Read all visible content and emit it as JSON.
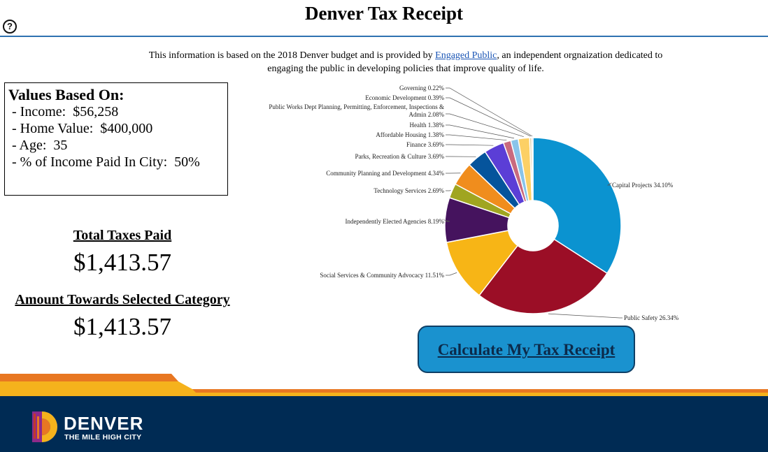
{
  "page": {
    "title": "Denver Tax Receipt",
    "help_icon": "help-circle-icon",
    "intro_before": "This information is based on the 2018 Denver budget and is provided by ",
    "intro_link": "Engaged Public",
    "intro_after": ", an independent orgnaization dedicated to engaging the public in developing policies that improve quality of life."
  },
  "values": {
    "title": "Values Based On:",
    "lines": [
      " - Income:  $56,258",
      " - Home Value:  $400,000",
      " - Age:  35",
      " - % of Income Paid In City:  50%"
    ]
  },
  "totals": {
    "total_label": "Total Taxes Paid",
    "total_value": "$1,413.57",
    "category_label": "Amount Towards Selected Category",
    "category_value": "$1,413.57"
  },
  "button": {
    "label": "Calculate My Tax Receipt"
  },
  "footer": {
    "logo_line1": "DENVER",
    "logo_line2": "THE MILE HIGH CITY",
    "colors": {
      "navy": "#002b54",
      "orange": "#e87722",
      "gold": "#f5b21c"
    }
  },
  "chart_data": {
    "type": "pie",
    "title": "",
    "donut": true,
    "slices": [
      {
        "label": "Capital Projects",
        "pct": "34.10%",
        "value": 34.1,
        "color": "#0b93d0"
      },
      {
        "label": "Public Safety",
        "pct": "26.34%",
        "value": 26.34,
        "color": "#9b0e26"
      },
      {
        "label": "Social Services & Community Advocacy",
        "pct": "11.51%",
        "value": 11.51,
        "color": "#f7b516"
      },
      {
        "label": "Independently Elected Agencies",
        "pct": "8.19%",
        "value": 8.19,
        "color": "#45135e"
      },
      {
        "label": "Technology Services",
        "pct": "2.69%",
        "value": 2.69,
        "color": "#a0a520"
      },
      {
        "label": "Community Planning and Development",
        "pct": "4.34%",
        "value": 4.34,
        "color": "#f08d1d"
      },
      {
        "label": "Parks, Recreation & Culture",
        "pct": "3.69%",
        "value": 3.69,
        "color": "#05549c"
      },
      {
        "label": "Finance",
        "pct": "3.69%",
        "value": 3.69,
        "color": "#5b3ed6"
      },
      {
        "label": "Affordable Housing",
        "pct": "1.38%",
        "value": 1.38,
        "color": "#c96a7e"
      },
      {
        "label": "Health",
        "pct": "1.38%",
        "value": 1.38,
        "color": "#89c4ea"
      },
      {
        "label": "Public Works Dept Planning, Permitting, Enforcement, Inspections & Admin",
        "pct": "2.08%",
        "value": 2.08,
        "color": "#fcd065"
      },
      {
        "label": "Economic Development",
        "pct": "0.39%",
        "value": 0.39,
        "color": "#e0cda4"
      },
      {
        "label": "Governing",
        "pct": "0.22%",
        "value": 0.22,
        "color": "#8b8fb7"
      }
    ]
  }
}
